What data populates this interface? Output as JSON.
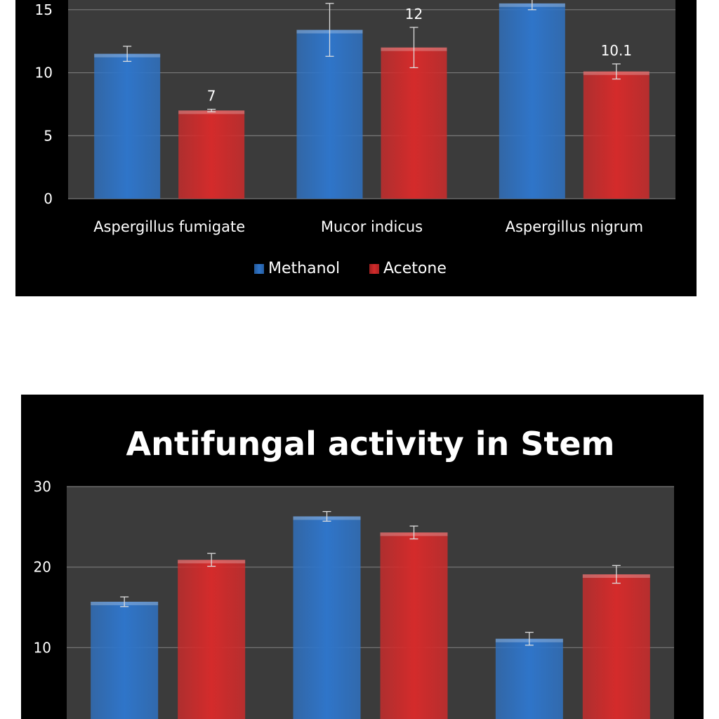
{
  "colors": {
    "methanol": "#2f75c9",
    "acetone": "#d42b2b"
  },
  "chart_data": [
    {
      "type": "bar",
      "title": "",
      "categories": [
        "Aspergillus fumigate",
        "Mucor indicus",
        "Aspergillus nigrum"
      ],
      "ylim": [
        0,
        18
      ],
      "yticks": [
        "0",
        "5",
        "10",
        "15"
      ],
      "ytick_values": [
        0,
        5,
        10,
        15
      ],
      "grid": true,
      "legend_placement": "bottom",
      "series": [
        {
          "name": "Methanol",
          "color": "#2f75c9",
          "values": [
            11.5,
            13.4,
            15.5
          ],
          "errors": [
            0.6,
            2.1,
            0.5
          ],
          "labels": [
            "",
            "",
            ""
          ]
        },
        {
          "name": "Acetone",
          "color": "#d42b2b",
          "values": [
            7,
            12,
            10.1
          ],
          "errors": [
            0.1,
            1.6,
            0.6
          ],
          "labels": [
            "7",
            "12",
            "10.1"
          ]
        }
      ]
    },
    {
      "type": "bar",
      "title": "Antifungal activity in Stem",
      "categories": [
        "",
        "",
        ""
      ],
      "ylim": [
        0,
        30
      ],
      "yticks": [
        "10",
        "20",
        "30"
      ],
      "ytick_values": [
        10,
        20,
        30
      ],
      "grid": true,
      "series": [
        {
          "name": "",
          "color": "#2f75c9",
          "values": [
            15.7,
            26.3,
            11.1
          ],
          "errors": [
            0.6,
            0.6,
            0.8
          ]
        },
        {
          "name": "",
          "color": "#d42b2b",
          "values": [
            20.9,
            24.3,
            19.1
          ],
          "errors": [
            0.8,
            0.8,
            1.1
          ]
        }
      ]
    }
  ]
}
